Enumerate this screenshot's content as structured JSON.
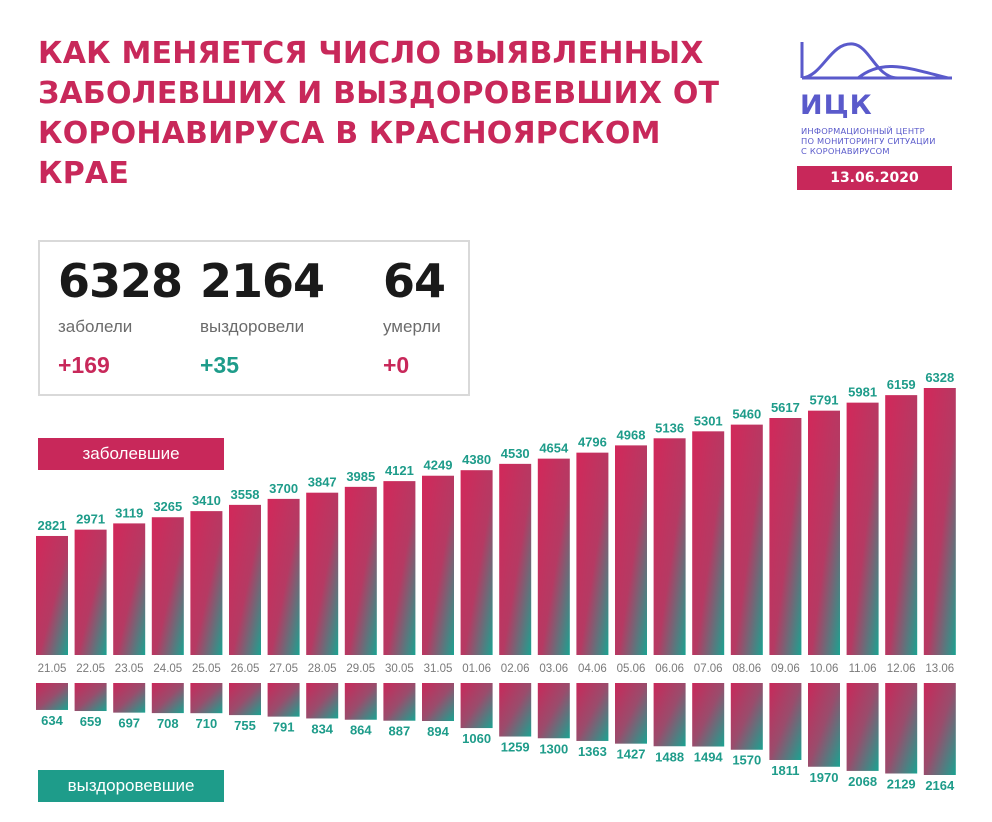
{
  "header": {
    "title_lines": [
      "КАК МЕНЯЕТСЯ ЧИСЛО ВЫЯВЛЕННЫХ",
      "ЗАБОЛЕВШИХ И ВЫЗДОРОВЕВШИХ ОТ",
      "КОРОНАВИРУСА В КРАСНОЯРСКОМ",
      "КРАЕ"
    ]
  },
  "logo": {
    "name": "ИЦК",
    "subtitle_lines": [
      "ИНФОРМАЦИОННЫЙ ЦЕНТР",
      "ПО МОНИТОРИНГУ СИТУАЦИИ",
      "С КОРОНАВИРУСОМ"
    ],
    "date": "13.06.2020"
  },
  "stats": {
    "sick": {
      "value": "6328",
      "label": "заболели",
      "delta": "+169"
    },
    "recovered": {
      "value": "2164",
      "label": "выздоровели",
      "delta": "+35"
    },
    "died": {
      "value": "64",
      "label": "умерли",
      "delta": "+0"
    }
  },
  "colors": {
    "accent": "#c8285a",
    "teal": "#1e9c8a",
    "logo": "#5a5acb"
  },
  "chart_data": {
    "type": "bar",
    "categories": [
      "21.05",
      "22.05",
      "23.05",
      "24.05",
      "25.05",
      "26.05",
      "27.05",
      "28.05",
      "29.05",
      "30.05",
      "31.05",
      "01.06",
      "02.06",
      "03.06",
      "04.06",
      "05.06",
      "06.06",
      "07.06",
      "08.06",
      "09.06",
      "10.06",
      "11.06",
      "12.06",
      "13.06"
    ],
    "series": [
      {
        "name": "заболевшие",
        "values": [
          2821,
          2971,
          3119,
          3265,
          3410,
          3558,
          3700,
          3847,
          3985,
          4121,
          4249,
          4380,
          4530,
          4654,
          4796,
          4968,
          5136,
          5301,
          5460,
          5617,
          5791,
          5981,
          6159,
          6328
        ]
      },
      {
        "name": "выздоровевшие",
        "values": [
          634,
          659,
          697,
          708,
          710,
          755,
          791,
          834,
          864,
          887,
          894,
          1060,
          1259,
          1300,
          1363,
          1427,
          1488,
          1494,
          1570,
          1811,
          1970,
          2068,
          2129,
          2164
        ]
      }
    ],
    "legend": [
      "заболевшие",
      "выздоровевшие"
    ]
  }
}
